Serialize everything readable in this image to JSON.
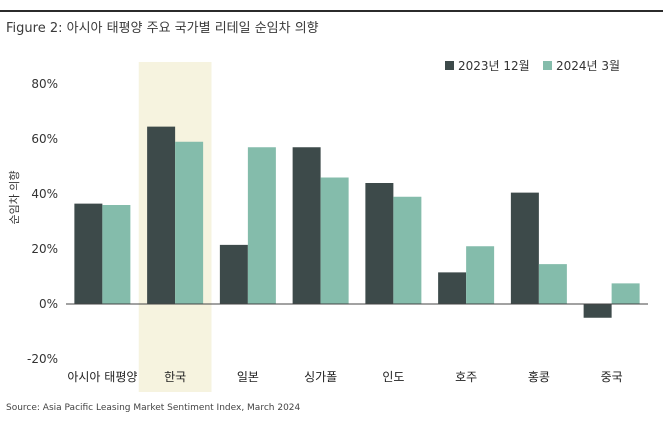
{
  "figure": {
    "title": "Figure 2: 아시아 태평양 주요 국가별 리테일 순임차 의향",
    "source": "Source: Asia Pacific Leasing Market Sentiment Index, March 2024"
  },
  "colors": {
    "series1": "#3d4a4a",
    "series2": "#84bcab",
    "highlight": "#f6f3df",
    "zero_line": "#444444"
  },
  "chart_data": {
    "type": "bar",
    "categories": [
      "아시아 태평양",
      "한국",
      "일본",
      "싱가폴",
      "인도",
      "호주",
      "홍콩",
      "중국"
    ],
    "series": [
      {
        "name": "2023년 12월",
        "values": [
          36.5,
          64.5,
          21.5,
          57,
          44,
          11.5,
          40.5,
          -5
        ]
      },
      {
        "name": "2024년 3월",
        "values": [
          36,
          59,
          57,
          46,
          39,
          21,
          14.5,
          7.5
        ]
      }
    ],
    "yticks": [
      "80%",
      "60%",
      "40%",
      "20%",
      "0%",
      "-20%"
    ],
    "ytick_values": [
      80,
      60,
      40,
      20,
      0,
      -20
    ],
    "ylim": [
      -20,
      80
    ],
    "ylabel": "순임차 의향",
    "xlabel": "",
    "highlight_category": "한국",
    "legend_position": "top-right",
    "grid": false
  }
}
